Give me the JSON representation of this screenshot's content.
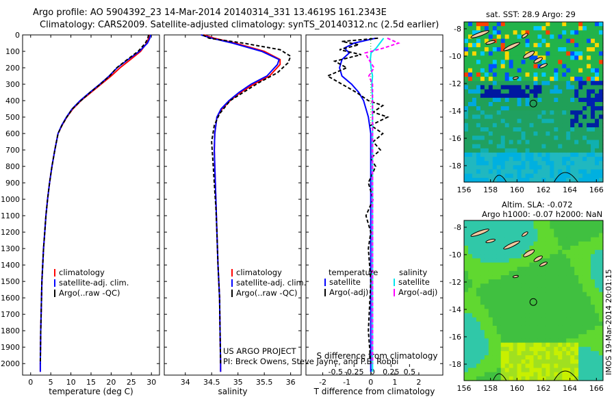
{
  "title_line1": "Argo profile: AO 5904392_23 14-Mar-2014 20140314_331 13.4619S 161.2343E",
  "title_line2": "Climatology: CARS2009. Satellite-adjusted climatology: synTS_20140312.nc (2.5d earlier)",
  "footer_line1": "US ARGO PROJECT",
  "footer_line2": "PI: Breck Owens, Steve Jayne, and P.E. Robbi",
  "imos_stamp": "IMOS 19-Mar-2014 20:01:15",
  "map_top_title": "sat. SST: 28.9 Argo: 29",
  "map_bottom_title1": "Altim. SLA: -0.072",
  "map_bottom_title2": "Argo h1000: -0.07 h2000: NaN",
  "colors": {
    "climatology": "#ff0000",
    "satellite": "#0000ff",
    "argo": "#000000",
    "sal_sat": "#00e5ee",
    "sal_argo": "#ff00ff"
  },
  "chart_data": [
    {
      "type": "line",
      "xlabel": "temperature (deg C)",
      "ylabel": "",
      "xlim": [
        -2,
        32
      ],
      "ylim": [
        2070,
        0
      ],
      "xticks": [
        0,
        5,
        10,
        15,
        20,
        25,
        30
      ],
      "yticks": [
        0,
        100,
        200,
        300,
        400,
        500,
        600,
        700,
        800,
        900,
        1000,
        1100,
        1200,
        1300,
        1400,
        1500,
        1600,
        1700,
        1800,
        1900,
        2000
      ],
      "legend": [
        "climatology",
        "satellite-adj. clim.",
        "Argo(..raw -QC)"
      ],
      "legend_position": "lower-center",
      "series": [
        {
          "name": "climatology",
          "color": "#ff0000",
          "points": [
            [
              29.5,
              0
            ],
            [
              29.3,
              20
            ],
            [
              28.8,
              50
            ],
            [
              27.3,
              100
            ],
            [
              24.8,
              150
            ],
            [
              22.2,
              200
            ],
            [
              20,
              250
            ],
            [
              17.5,
              300
            ],
            [
              15,
              350
            ],
            [
              12.5,
              400
            ],
            [
              10.5,
              450
            ],
            [
              9,
              500
            ],
            [
              7.8,
              550
            ],
            [
              6.8,
              600
            ],
            [
              6,
              700
            ],
            [
              5.3,
              800
            ],
            [
              4.7,
              900
            ],
            [
              4.2,
              1000
            ],
            [
              3.8,
              1100
            ],
            [
              3.5,
              1200
            ],
            [
              3.2,
              1300
            ],
            [
              3,
              1400
            ],
            [
              2.8,
              1500
            ],
            [
              2.6,
              1700
            ],
            [
              2.5,
              1800
            ],
            [
              2.4,
              2000
            ],
            [
              2.4,
              2050
            ]
          ]
        },
        {
          "name": "satellite-adj. clim.",
          "color": "#0000ff",
          "points": [
            [
              29.8,
              0
            ],
            [
              29.6,
              20
            ],
            [
              29,
              50
            ],
            [
              27,
              100
            ],
            [
              24.2,
              150
            ],
            [
              21.5,
              200
            ],
            [
              19.5,
              250
            ],
            [
              17.2,
              300
            ],
            [
              14.7,
              350
            ],
            [
              12.3,
              400
            ],
            [
              10.3,
              450
            ],
            [
              8.9,
              500
            ],
            [
              7.7,
              550
            ],
            [
              6.8,
              600
            ],
            [
              6,
              700
            ],
            [
              5.3,
              800
            ],
            [
              4.7,
              900
            ],
            [
              4.2,
              1000
            ],
            [
              3.8,
              1100
            ],
            [
              3.5,
              1200
            ],
            [
              3.2,
              1300
            ],
            [
              3,
              1400
            ],
            [
              2.8,
              1500
            ],
            [
              2.6,
              1700
            ],
            [
              2.5,
              1800
            ],
            [
              2.4,
              2000
            ],
            [
              2.4,
              2050
            ]
          ]
        },
        {
          "name": "Argo(..raw -QC)",
          "color": "#000000",
          "dash": "5,3",
          "points": [
            [
              29.3,
              0
            ],
            [
              29.1,
              20
            ],
            [
              28.5,
              50
            ],
            [
              26.7,
              100
            ],
            [
              24,
              150
            ],
            [
              21.4,
              200
            ],
            [
              19.6,
              250
            ],
            [
              17.3,
              300
            ],
            [
              14.8,
              350
            ],
            [
              12.5,
              400
            ],
            [
              10.4,
              450
            ],
            [
              9,
              500
            ],
            [
              7.8,
              550
            ],
            [
              6.8,
              600
            ],
            [
              6,
              700
            ],
            [
              5.3,
              800
            ],
            [
              4.7,
              900
            ],
            [
              4.2,
              1000
            ],
            [
              3.8,
              1100
            ],
            [
              3.5,
              1200
            ],
            [
              3.2,
              1300
            ],
            [
              3,
              1400
            ],
            [
              2.8,
              1500
            ],
            [
              2.6,
              1700
            ],
            [
              2.5,
              1800
            ],
            [
              2.4,
              2000
            ]
          ]
        }
      ]
    },
    {
      "type": "line",
      "xlabel": "salinity",
      "xlim": [
        33.6,
        36.2
      ],
      "ylim": [
        2070,
        0
      ],
      "xticks": [
        34,
        34.5,
        35,
        35.5,
        36
      ],
      "legend": [
        "climatology",
        "satellite-adj. clim.",
        "Argo(..raw -QC)"
      ],
      "legend_position": "lower-center",
      "series": [
        {
          "name": "climatology",
          "color": "#ff0000",
          "points": [
            [
              34.35,
              0
            ],
            [
              34.55,
              20
            ],
            [
              34.95,
              50
            ],
            [
              35.5,
              100
            ],
            [
              35.8,
              150
            ],
            [
              35.8,
              180
            ],
            [
              35.6,
              250
            ],
            [
              35.3,
              300
            ],
            [
              35.05,
              350
            ],
            [
              34.85,
              400
            ],
            [
              34.7,
              450
            ],
            [
              34.6,
              500
            ],
            [
              34.56,
              600
            ],
            [
              34.55,
              700
            ],
            [
              34.56,
              800
            ],
            [
              34.57,
              900
            ],
            [
              34.58,
              1000
            ],
            [
              34.6,
              1200
            ],
            [
              34.62,
              1400
            ],
            [
              34.65,
              1600
            ],
            [
              34.66,
              1800
            ],
            [
              34.67,
              2000
            ],
            [
              34.67,
              2050
            ]
          ]
        },
        {
          "name": "satellite-adj. clim.",
          "color": "#0000ff",
          "points": [
            [
              34.3,
              0
            ],
            [
              34.5,
              20
            ],
            [
              34.9,
              50
            ],
            [
              35.45,
              100
            ],
            [
              35.78,
              150
            ],
            [
              35.75,
              180
            ],
            [
              35.55,
              250
            ],
            [
              35.25,
              300
            ],
            [
              35.02,
              350
            ],
            [
              34.83,
              400
            ],
            [
              34.68,
              450
            ],
            [
              34.6,
              500
            ],
            [
              34.56,
              600
            ],
            [
              34.55,
              700
            ],
            [
              34.56,
              800
            ],
            [
              34.57,
              900
            ],
            [
              34.58,
              1000
            ],
            [
              34.6,
              1200
            ],
            [
              34.62,
              1400
            ],
            [
              34.65,
              1600
            ],
            [
              34.66,
              1800
            ],
            [
              34.67,
              2000
            ],
            [
              34.67,
              2050
            ]
          ]
        },
        {
          "name": "Argo(..raw -QC)",
          "color": "#000000",
          "dash": "5,3",
          "points": [
            [
              34.33,
              0
            ],
            [
              34.45,
              20
            ],
            [
              35.1,
              50
            ],
            [
              35.8,
              90
            ],
            [
              36.0,
              130
            ],
            [
              35.95,
              170
            ],
            [
              35.75,
              230
            ],
            [
              35.4,
              290
            ],
            [
              35.1,
              350
            ],
            [
              34.85,
              400
            ],
            [
              34.65,
              480
            ],
            [
              34.55,
              550
            ],
            [
              34.5,
              650
            ],
            [
              34.52,
              750
            ],
            [
              34.54,
              850
            ],
            [
              34.56,
              950
            ],
            [
              34.58,
              1050
            ],
            [
              34.6,
              1200
            ],
            [
              34.62,
              1400
            ],
            [
              34.65,
              1600
            ],
            [
              34.66,
              1800
            ],
            [
              34.67,
              2000
            ]
          ]
        }
      ]
    },
    {
      "type": "line",
      "xlabel": "T difference from climatology",
      "xlabel2": "S difference from climatology",
      "xlim": [
        -2.7,
        3
      ],
      "xlim_s": [
        -0.9,
        0.95
      ],
      "ylim": [
        2070,
        0
      ],
      "xticks": [
        -2,
        -1,
        0,
        1,
        2
      ],
      "xticks_s": [
        -0.5,
        -0.25,
        0,
        0.25,
        0.5
      ],
      "legend_title_t": "temperature",
      "legend_title_s": "salinity",
      "legend": [
        "satellite",
        "Argo(-adj)",
        "satellite",
        "Argo(-adj)"
      ],
      "legend_position": "lower-center",
      "series": [
        {
          "name": "satellite",
          "color": "#0000ff",
          "points": [
            [
              0.2,
              20
            ],
            [
              -0.7,
              50
            ],
            [
              -1.1,
              80
            ],
            [
              -0.9,
              110
            ],
            [
              -1.2,
              150
            ],
            [
              -1.3,
              200
            ],
            [
              -1.2,
              250
            ],
            [
              -0.8,
              300
            ],
            [
              -0.5,
              350
            ],
            [
              -0.3,
              400
            ],
            [
              -0.1,
              500
            ],
            [
              0,
              600
            ],
            [
              0,
              800
            ],
            [
              0,
              1000
            ],
            [
              0,
              1500
            ],
            [
              0,
              2050
            ]
          ]
        },
        {
          "name": "Argo(-adj)",
          "color": "#000000",
          "dash": "5,3",
          "points": [
            [
              0.3,
              20
            ],
            [
              -1.2,
              40
            ],
            [
              -0.5,
              60
            ],
            [
              -1.3,
              90
            ],
            [
              -0.4,
              120
            ],
            [
              -1.5,
              160
            ],
            [
              -1.0,
              200
            ],
            [
              -1.8,
              250
            ],
            [
              -1.2,
              300
            ],
            [
              -0.6,
              350
            ],
            [
              -0.1,
              400
            ],
            [
              0.5,
              430
            ],
            [
              0.1,
              470
            ],
            [
              0.7,
              500
            ],
            [
              0.0,
              550
            ],
            [
              0.5,
              600
            ],
            [
              0.1,
              650
            ],
            [
              0.4,
              700
            ],
            [
              0.0,
              750
            ],
            [
              0.2,
              800
            ],
            [
              -0.1,
              900
            ],
            [
              0.1,
              1000
            ],
            [
              -0.2,
              1100
            ],
            [
              0.0,
              1200
            ],
            [
              -0.1,
              1300
            ],
            [
              0.0,
              1500
            ],
            [
              -0.1,
              1800
            ],
            [
              0,
              2000
            ]
          ]
        },
        {
          "name": "satellite",
          "color": "#00e5ee",
          "points": [
            [
              0.15,
              20
            ],
            [
              0.1,
              50
            ],
            [
              0.05,
              80
            ],
            [
              -0.02,
              110
            ],
            [
              -0.03,
              150
            ],
            [
              -0.02,
              200
            ],
            [
              0.0,
              250
            ],
            [
              -0.01,
              300
            ],
            [
              0.0,
              400
            ],
            [
              0.0,
              600
            ],
            [
              0.0,
              1000
            ],
            [
              0.0,
              2050
            ]
          ]
        },
        {
          "name": "Argo(-adj)",
          "color": "#ff00ff",
          "dash": "5,3",
          "points": [
            [
              0.2,
              20
            ],
            [
              0.35,
              50
            ],
            [
              0.15,
              80
            ],
            [
              -0.1,
              110
            ],
            [
              -0.05,
              150
            ],
            [
              0.02,
              200
            ],
            [
              -0.05,
              250
            ],
            [
              0.0,
              300
            ],
            [
              0.0,
              400
            ],
            [
              0.0,
              600
            ],
            [
              0.0,
              1000
            ],
            [
              0.0,
              2000
            ]
          ]
        }
      ]
    },
    {
      "type": "heatmap",
      "title": "sat. SST: 28.9 Argo: 29",
      "xlim": [
        156,
        166.5
      ],
      "ylim": [
        -19.2,
        -7.5
      ],
      "xticks": [
        156,
        158,
        160,
        162,
        164,
        166
      ],
      "yticks": [
        -8,
        -10,
        -12,
        -14,
        -16,
        -18
      ],
      "marker_lon": 161.2343,
      "marker_lat": -13.4619
    },
    {
      "type": "heatmap",
      "title": "Altim. SLA: -0.072",
      "xlim": [
        156,
        166.5
      ],
      "ylim": [
        -19.2,
        -7.5
      ],
      "xticks": [
        156,
        158,
        160,
        162,
        164,
        166
      ],
      "yticks": [
        -8,
        -10,
        -12,
        -14,
        -16,
        -18
      ],
      "marker_lon": 161.2343,
      "marker_lat": -13.4619
    }
  ]
}
